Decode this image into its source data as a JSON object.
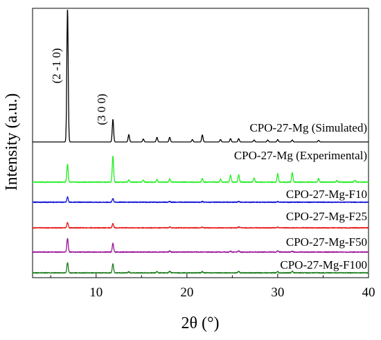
{
  "chart_data": {
    "type": "line",
    "xlabel": "2θ (°)",
    "ylabel": "Intensity (a.u.)",
    "xlim": [
      3,
      40
    ],
    "x_ticks": [
      10,
      20,
      30,
      40
    ],
    "x_tick_labels": [
      "10",
      "20",
      "30",
      "40"
    ],
    "y_ticks_visible": false,
    "annotations": [
      "(2 -1 0)",
      "(3 0 0)"
    ],
    "series": [
      {
        "name": "CPO-27-Mg (Simulated)",
        "color": "#000000",
        "baseline": 0.0,
        "peaks": [
          {
            "x": 6.85,
            "h": 1.0
          },
          {
            "x": 11.85,
            "h": 0.17
          },
          {
            "x": 13.6,
            "h": 0.055
          },
          {
            "x": 15.2,
            "h": 0.022
          },
          {
            "x": 16.7,
            "h": 0.035
          },
          {
            "x": 18.1,
            "h": 0.035
          },
          {
            "x": 20.6,
            "h": 0.018
          },
          {
            "x": 21.7,
            "h": 0.053
          },
          {
            "x": 23.7,
            "h": 0.018
          },
          {
            "x": 24.8,
            "h": 0.025
          },
          {
            "x": 25.7,
            "h": 0.025
          },
          {
            "x": 27.4,
            "h": 0.015
          },
          {
            "x": 28.9,
            "h": 0.015
          },
          {
            "x": 30.0,
            "h": 0.018
          },
          {
            "x": 31.6,
            "h": 0.015
          },
          {
            "x": 34.5,
            "h": 0.012
          }
        ]
      },
      {
        "name": "CPO-27-Mg (Experimental)",
        "color": "#21ee21",
        "baseline": 0.0,
        "peaks": [
          {
            "x": 6.85,
            "h": 0.17
          },
          {
            "x": 11.85,
            "h": 0.25
          },
          {
            "x": 13.6,
            "h": 0.02
          },
          {
            "x": 15.2,
            "h": 0.02
          },
          {
            "x": 16.7,
            "h": 0.025
          },
          {
            "x": 18.1,
            "h": 0.03
          },
          {
            "x": 21.7,
            "h": 0.035
          },
          {
            "x": 23.7,
            "h": 0.03
          },
          {
            "x": 24.8,
            "h": 0.065
          },
          {
            "x": 25.7,
            "h": 0.07
          },
          {
            "x": 27.4,
            "h": 0.04
          },
          {
            "x": 30.0,
            "h": 0.08
          },
          {
            "x": 31.6,
            "h": 0.09
          },
          {
            "x": 34.5,
            "h": 0.035
          },
          {
            "x": 36.5,
            "h": 0.015
          },
          {
            "x": 38.5,
            "h": 0.02
          }
        ]
      },
      {
        "name": "CPO-27-Mg-F10",
        "color": "#1010d8",
        "baseline": 0.0,
        "peaks": [
          {
            "x": 6.85,
            "h": 0.05
          },
          {
            "x": 11.85,
            "h": 0.035
          },
          {
            "x": 18.1,
            "h": 0.008
          },
          {
            "x": 21.7,
            "h": 0.007
          },
          {
            "x": 25.7,
            "h": 0.007
          },
          {
            "x": 30.0,
            "h": 0.006
          }
        ]
      },
      {
        "name": "CPO-27-Mg-F25",
        "color": "#e81a1a",
        "baseline": 0.0,
        "peaks": [
          {
            "x": 6.85,
            "h": 0.05
          },
          {
            "x": 11.85,
            "h": 0.04
          },
          {
            "x": 18.1,
            "h": 0.008
          },
          {
            "x": 21.7,
            "h": 0.008
          },
          {
            "x": 25.7,
            "h": 0.008
          },
          {
            "x": 30.0,
            "h": 0.007
          }
        ]
      },
      {
        "name": "CPO-27-Mg-F50",
        "color": "#9a129a",
        "baseline": 0.0,
        "peaks": [
          {
            "x": 6.85,
            "h": 0.13
          },
          {
            "x": 11.85,
            "h": 0.085
          },
          {
            "x": 18.1,
            "h": 0.01
          },
          {
            "x": 24.8,
            "h": 0.01
          },
          {
            "x": 25.7,
            "h": 0.01
          },
          {
            "x": 30.0,
            "h": 0.012
          },
          {
            "x": 31.6,
            "h": 0.01
          }
        ]
      },
      {
        "name": "CPO-27-Mg-F100",
        "color": "#1c7c1c",
        "baseline": 0.0,
        "peaks": [
          {
            "x": 6.85,
            "h": 0.1
          },
          {
            "x": 11.85,
            "h": 0.085
          },
          {
            "x": 13.6,
            "h": 0.01
          },
          {
            "x": 16.7,
            "h": 0.012
          },
          {
            "x": 18.1,
            "h": 0.015
          },
          {
            "x": 21.7,
            "h": 0.012
          },
          {
            "x": 25.7,
            "h": 0.015
          },
          {
            "x": 30.0,
            "h": 0.012
          },
          {
            "x": 31.6,
            "h": 0.015
          }
        ]
      }
    ]
  }
}
